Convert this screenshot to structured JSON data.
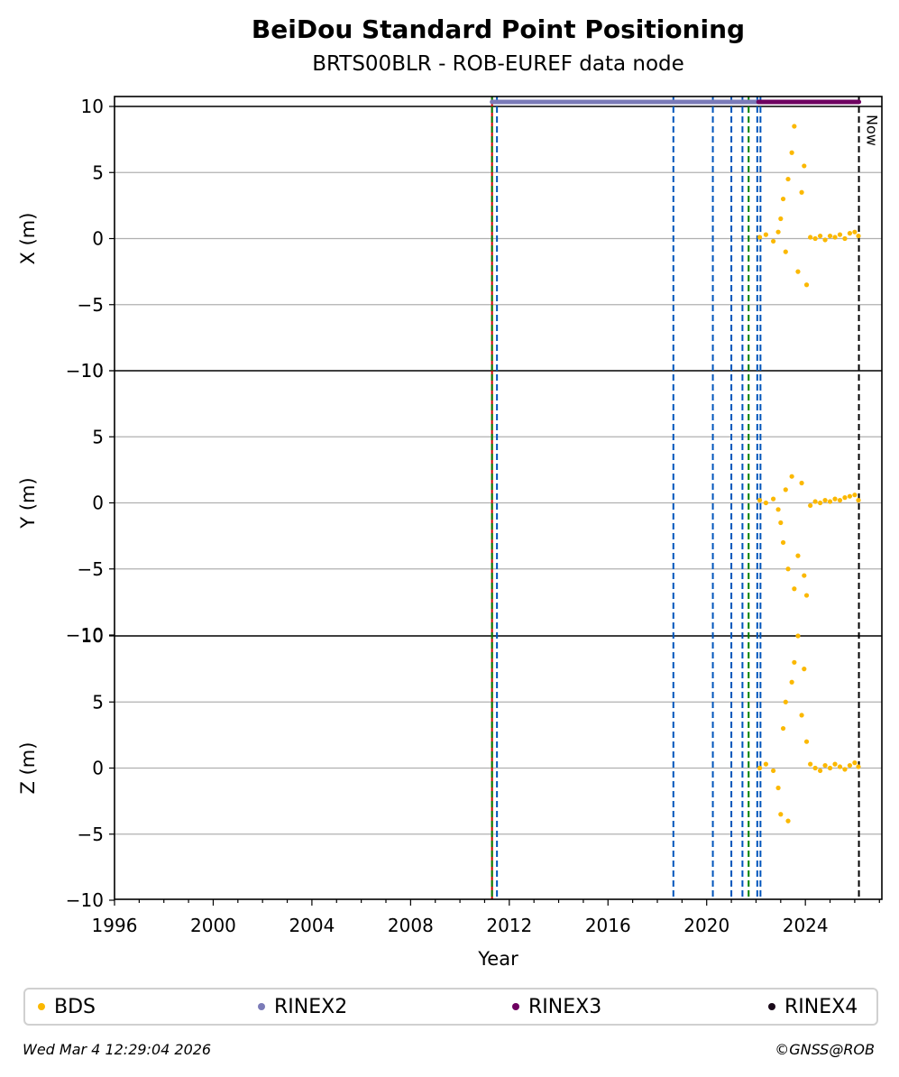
{
  "title": "BeiDou Standard Point Positioning",
  "subtitle": "BRTS00BLR - ROB-EUREF data node",
  "footer_left": "Wed Mar  4 12:29:04 2026",
  "footer_right": "©GNSS@ROB",
  "legend": [
    {
      "label": "BDS",
      "color": "#fbb800"
    },
    {
      "label": "RINEX2",
      "color": "#7b7bb8"
    },
    {
      "label": "RINEX3",
      "color": "#6e0060"
    },
    {
      "label": "RINEX4",
      "color": "#1a0a1a"
    }
  ],
  "chart_data": {
    "type": "scatter",
    "xlabel": "Year",
    "xlim": [
      1996,
      2027.1
    ],
    "xticks": [
      1996,
      2000,
      2004,
      2008,
      2012,
      2016,
      2020,
      2024
    ],
    "now_label": "Now",
    "now_x": 2026.17,
    "panels": [
      {
        "ylabel": "X (m)",
        "ylim": [
          -10,
          10
        ],
        "yticks": [
          -10,
          -5,
          0,
          5,
          10
        ],
        "ytick_labels": [
          "−10",
          "−5",
          "0",
          "5",
          "10"
        ]
      },
      {
        "ylabel": "Y (m)",
        "ylim": [
          -10,
          10
        ],
        "yticks": [
          -10,
          -5,
          0,
          5,
          10
        ],
        "ytick_labels": [
          "−10",
          "−5",
          "0",
          "5",
          "10"
        ]
      },
      {
        "ylabel": "Z (m)",
        "ylim": [
          -10,
          10
        ],
        "yticks": [
          -10,
          -5,
          0,
          5,
          10
        ],
        "ytick_labels": [
          "−10",
          "−5",
          "0",
          "5",
          "10"
        ]
      }
    ],
    "event_lines": [
      {
        "x": 2011.3,
        "color": "#cc0000",
        "style": "solid"
      },
      {
        "x": 2011.3,
        "color": "#008000",
        "style": "dashed"
      },
      {
        "x": 2011.5,
        "color": "#0055bb",
        "style": "dashed"
      },
      {
        "x": 2018.65,
        "color": "#0055bb",
        "style": "dashed"
      },
      {
        "x": 2020.25,
        "color": "#0055bb",
        "style": "dashed"
      },
      {
        "x": 2021.0,
        "color": "#0055bb",
        "style": "dashed"
      },
      {
        "x": 2021.45,
        "color": "#0055bb",
        "style": "dashed"
      },
      {
        "x": 2021.7,
        "color": "#008000",
        "style": "dashed"
      },
      {
        "x": 2022.05,
        "color": "#0055bb",
        "style": "dashed"
      },
      {
        "x": 2022.18,
        "color": "#0055bb",
        "style": "dashed"
      }
    ],
    "file_availability": [
      {
        "name": "RINEX2",
        "start": 2011.3,
        "end": 2022.1
      },
      {
        "name": "RINEX3",
        "start": 2022.1,
        "end": 2026.17
      }
    ],
    "series": [
      {
        "name": "BDS",
        "x": [
          2022.15,
          2022.4,
          2022.7,
          2022.9,
          2023.0,
          2023.1,
          2023.2,
          2023.3,
          2023.45,
          2023.55,
          2023.7,
          2023.85,
          2023.95,
          2024.05,
          2024.2,
          2024.4,
          2024.6,
          2024.8,
          2025.0,
          2025.2,
          2025.4,
          2025.6,
          2025.8,
          2026.0,
          2026.15
        ],
        "x_m": [
          0.1,
          0.3,
          -0.2,
          0.5,
          1.5,
          3.0,
          -1.0,
          4.5,
          6.5,
          8.5,
          -2.5,
          3.5,
          5.5,
          -3.5,
          0.1,
          0.0,
          0.2,
          -0.1,
          0.2,
          0.1,
          0.3,
          0.0,
          0.4,
          0.5,
          0.2
        ],
        "y_m": [
          0.2,
          0.0,
          0.3,
          -0.5,
          -1.5,
          -3.0,
          1.0,
          -5.0,
          2.0,
          -6.5,
          -4.0,
          1.5,
          -5.5,
          -7.0,
          -0.2,
          0.1,
          0.0,
          0.2,
          0.1,
          0.3,
          0.2,
          0.4,
          0.5,
          0.6,
          0.2
        ],
        "z_m": [
          0.0,
          0.3,
          -0.2,
          -1.5,
          -3.5,
          3.0,
          5.0,
          -4.0,
          6.5,
          8.0,
          10.0,
          4.0,
          7.5,
          2.0,
          0.3,
          0.0,
          -0.2,
          0.2,
          0.0,
          0.3,
          0.1,
          -0.1,
          0.2,
          0.4,
          0.1
        ]
      }
    ]
  }
}
